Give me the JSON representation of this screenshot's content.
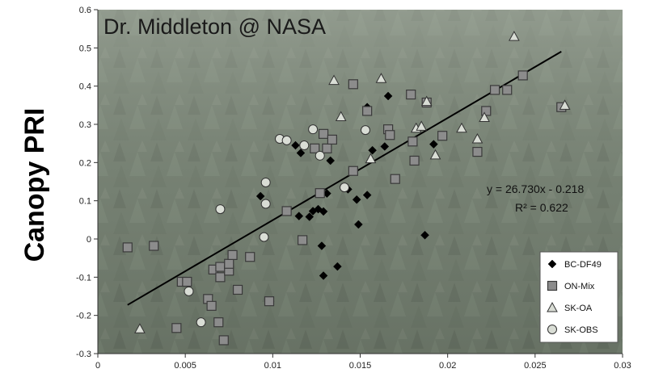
{
  "chart_data": {
    "type": "scatter",
    "title": "Dr. Middleton @ NASA",
    "ylabel": "Canopy PRI",
    "xlabel": "",
    "xlim": [
      0,
      0.03
    ],
    "ylim": [
      -0.3,
      0.6
    ],
    "xticks": [
      "0",
      "0.005",
      "0.01",
      "0.015",
      "0.02",
      "0.025",
      "0.03"
    ],
    "yticks": [
      "-0.3",
      "-0.2",
      "-0.1",
      "0",
      "0.1",
      "0.2",
      "0.3",
      "0.4",
      "0.5",
      "0.6"
    ],
    "grid": false,
    "legend_position": "bottom-right",
    "trendline": {
      "equation": "y = 26.730x - 0.218",
      "r2": "R² = 0.622",
      "slope": 26.73,
      "intercept": -0.218,
      "x_range": [
        0.0017,
        0.0265
      ]
    },
    "background_colors": {
      "forest": "#6f7a6c",
      "marker_fill_square": "#8c8c8c",
      "marker_fill_open": "#d9ddd5"
    },
    "series": [
      {
        "name": "BC-DF49",
        "marker": "diamond",
        "points": [
          [
            0.0093,
            0.112
          ],
          [
            0.0113,
            0.245
          ],
          [
            0.0116,
            0.225
          ],
          [
            0.0115,
            0.06
          ],
          [
            0.0121,
            0.058
          ],
          [
            0.0123,
            0.073
          ],
          [
            0.0126,
            0.078
          ],
          [
            0.0128,
            -0.018
          ],
          [
            0.0129,
            -0.096
          ],
          [
            0.0129,
            0.072
          ],
          [
            0.0131,
            0.119
          ],
          [
            0.0133,
            0.205
          ],
          [
            0.0137,
            -0.072
          ],
          [
            0.0143,
            0.13
          ],
          [
            0.0148,
            0.103
          ],
          [
            0.0149,
            0.038
          ],
          [
            0.0154,
            0.115
          ],
          [
            0.0154,
            0.345
          ],
          [
            0.0157,
            0.232
          ],
          [
            0.0164,
            0.242
          ],
          [
            0.0166,
            0.374
          ],
          [
            0.0187,
            0.01
          ],
          [
            0.0192,
            0.248
          ]
        ]
      },
      {
        "name": "ON-Mix",
        "marker": "square",
        "points": [
          [
            0.0017,
            -0.022
          ],
          [
            0.0032,
            -0.018
          ],
          [
            0.0045,
            -0.233
          ],
          [
            0.0048,
            -0.112
          ],
          [
            0.0051,
            -0.112
          ],
          [
            0.0063,
            -0.157
          ],
          [
            0.0065,
            -0.175
          ],
          [
            0.0066,
            -0.08
          ],
          [
            0.0069,
            -0.218
          ],
          [
            0.007,
            -0.1
          ],
          [
            0.007,
            -0.073
          ],
          [
            0.0072,
            -0.265
          ],
          [
            0.0075,
            -0.083
          ],
          [
            0.0075,
            -0.065
          ],
          [
            0.0077,
            -0.042
          ],
          [
            0.008,
            -0.133
          ],
          [
            0.0087,
            -0.047
          ],
          [
            0.0098,
            -0.163
          ],
          [
            0.0108,
            0.073
          ],
          [
            0.0117,
            -0.003
          ],
          [
            0.0124,
            0.237
          ],
          [
            0.0127,
            0.12
          ],
          [
            0.0129,
            0.275
          ],
          [
            0.0131,
            0.237
          ],
          [
            0.0134,
            0.26
          ],
          [
            0.0146,
            0.405
          ],
          [
            0.0146,
            0.178
          ],
          [
            0.0154,
            0.335
          ],
          [
            0.0166,
            0.287
          ],
          [
            0.0167,
            0.272
          ],
          [
            0.017,
            0.157
          ],
          [
            0.0179,
            0.378
          ],
          [
            0.018,
            0.255
          ],
          [
            0.0181,
            0.205
          ],
          [
            0.0188,
            0.357
          ],
          [
            0.0197,
            0.27
          ],
          [
            0.0217,
            0.228
          ],
          [
            0.0222,
            0.335
          ],
          [
            0.0227,
            0.39
          ],
          [
            0.0234,
            0.39
          ],
          [
            0.0243,
            0.428
          ],
          [
            0.0265,
            0.345
          ]
        ]
      },
      {
        "name": "SK-OA",
        "marker": "triangle",
        "points": [
          [
            0.0024,
            -0.235
          ],
          [
            0.0135,
            0.415
          ],
          [
            0.0139,
            0.32
          ],
          [
            0.0156,
            0.21
          ],
          [
            0.0162,
            0.42
          ],
          [
            0.0182,
            0.29
          ],
          [
            0.0185,
            0.295
          ],
          [
            0.0188,
            0.36
          ],
          [
            0.0193,
            0.22
          ],
          [
            0.0208,
            0.29
          ],
          [
            0.0217,
            0.262
          ],
          [
            0.0221,
            0.318
          ],
          [
            0.0238,
            0.53
          ],
          [
            0.0267,
            0.35
          ]
        ]
      },
      {
        "name": "SK-OBS",
        "marker": "circle",
        "points": [
          [
            0.0052,
            -0.137
          ],
          [
            0.0059,
            -0.218
          ],
          [
            0.007,
            0.078
          ],
          [
            0.0095,
            0.005
          ],
          [
            0.0096,
            0.148
          ],
          [
            0.0096,
            0.092
          ],
          [
            0.0104,
            0.262
          ],
          [
            0.0108,
            0.258
          ],
          [
            0.0118,
            0.245
          ],
          [
            0.0123,
            0.287
          ],
          [
            0.0127,
            0.218
          ],
          [
            0.0141,
            0.135
          ],
          [
            0.0153,
            0.285
          ]
        ]
      }
    ]
  }
}
